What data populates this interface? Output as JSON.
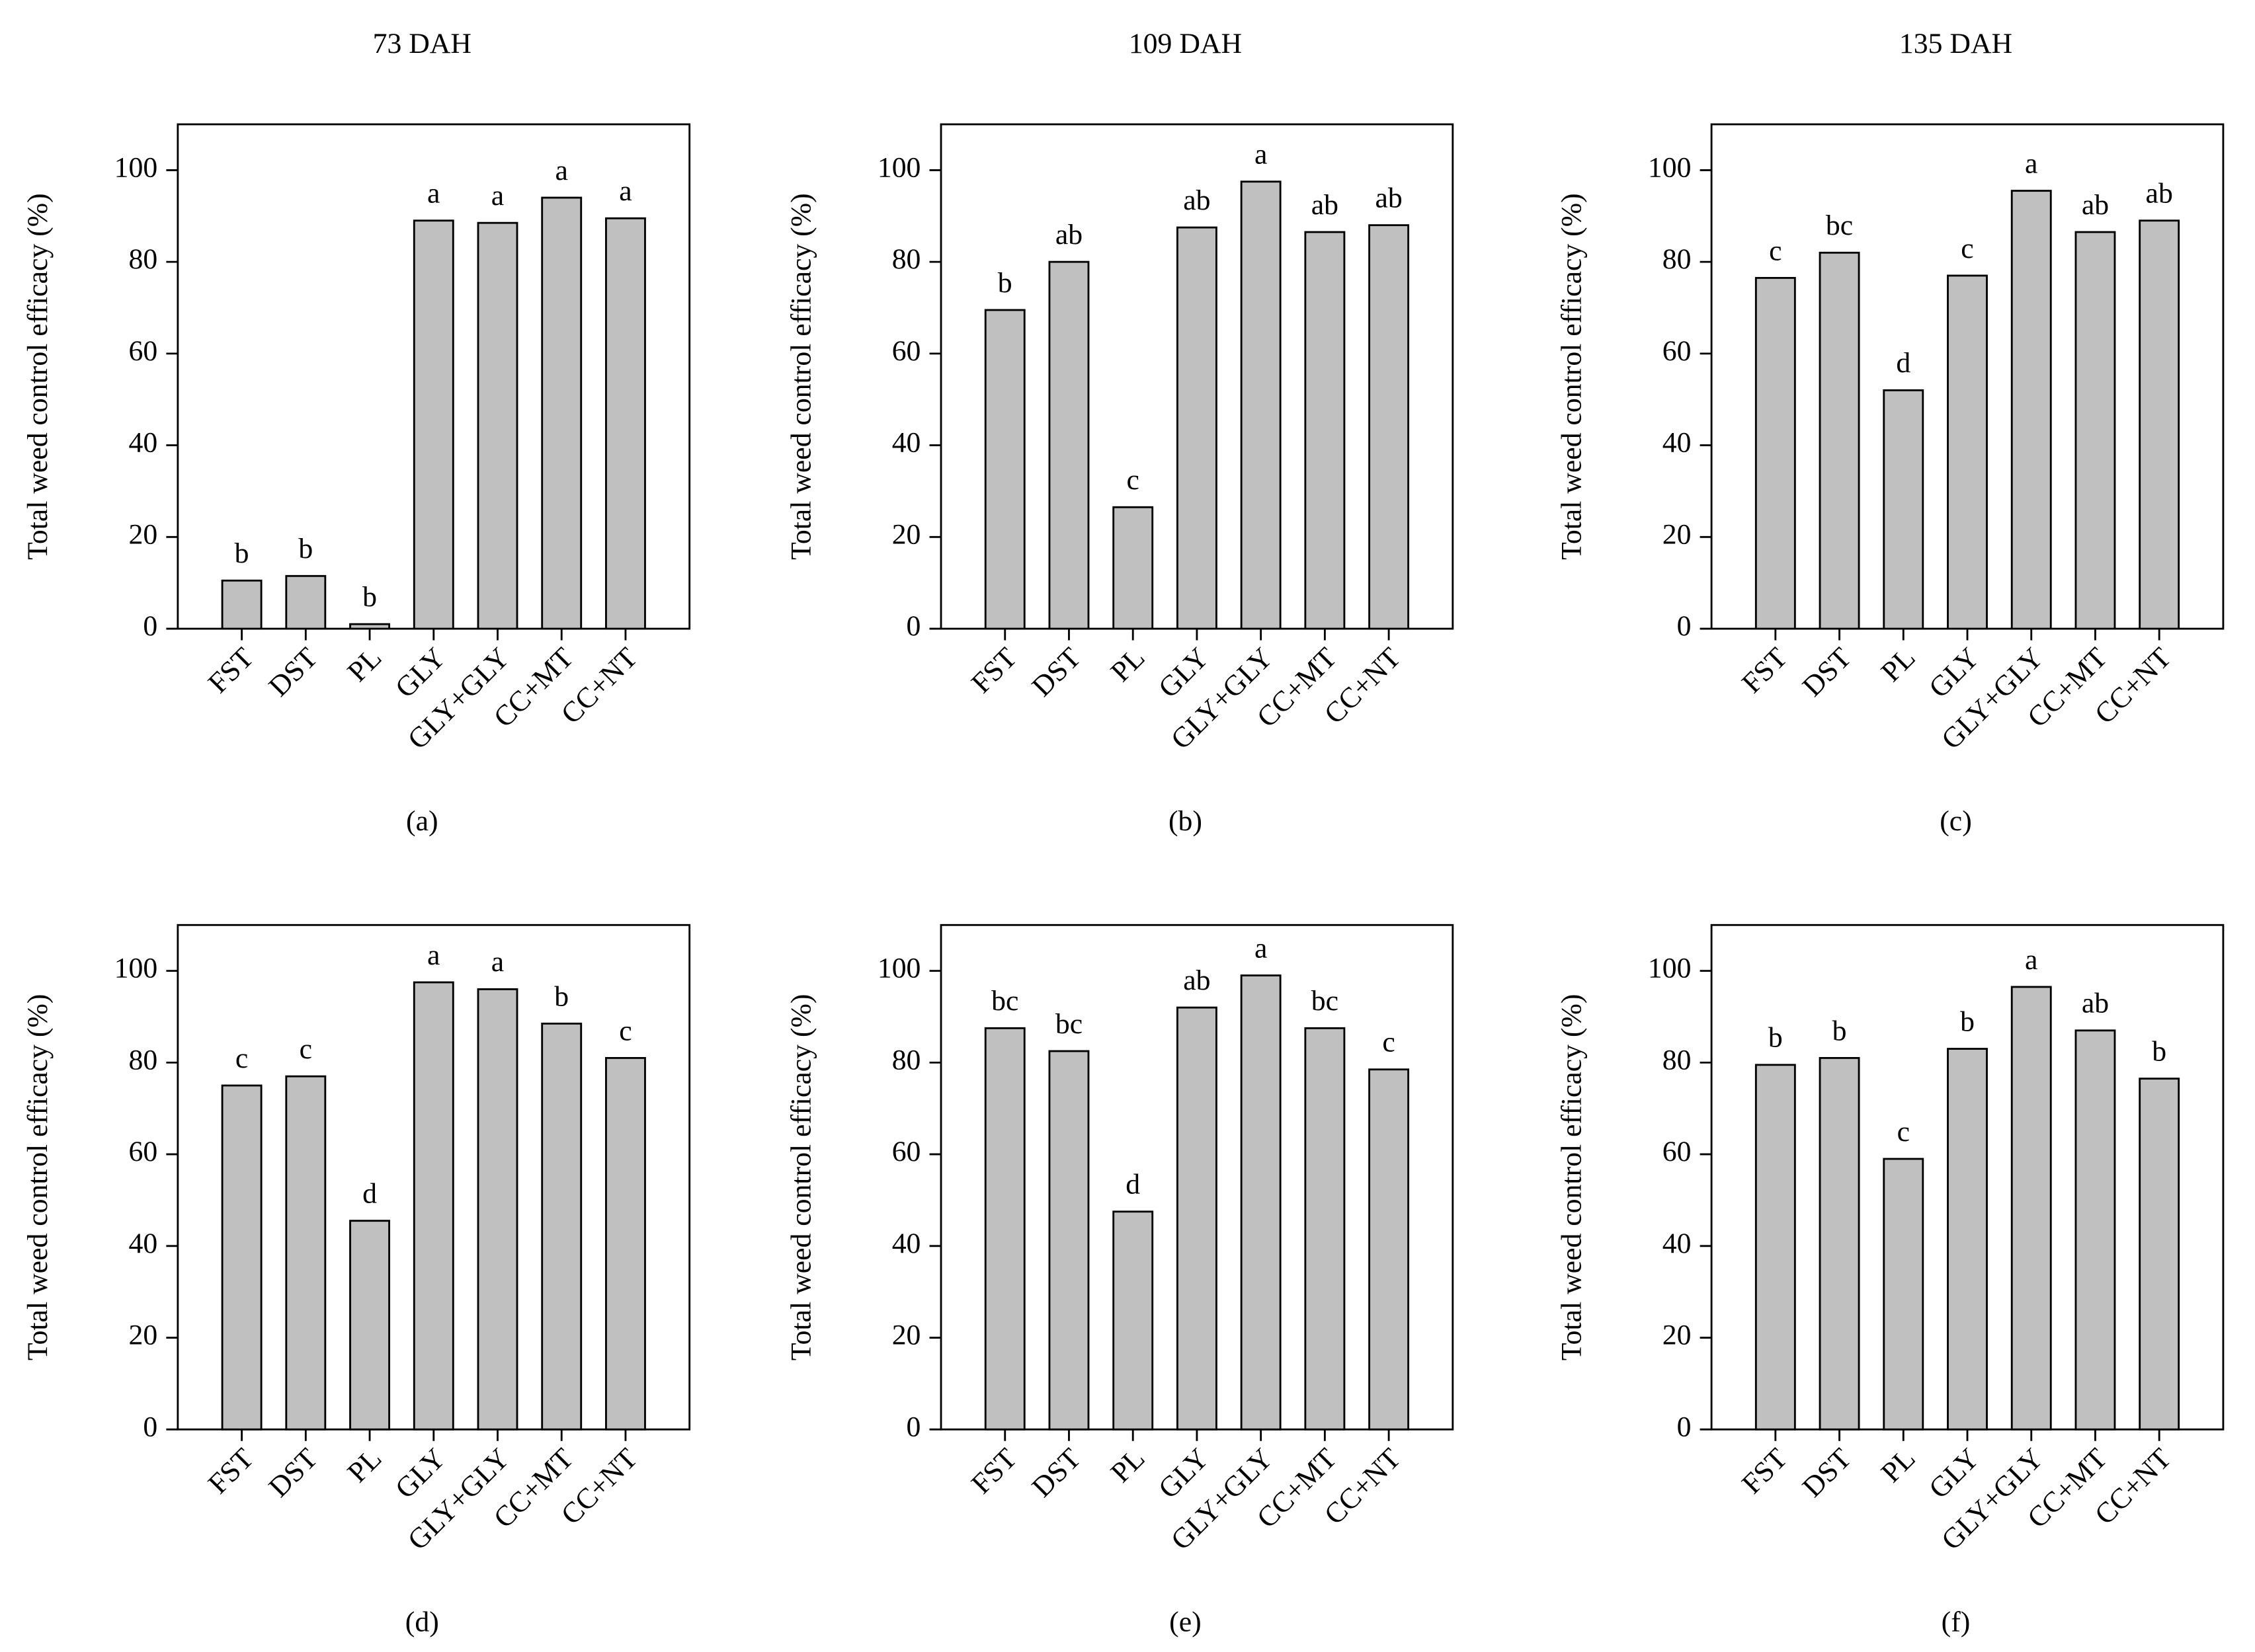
{
  "chart_data": [
    {
      "type": "bar",
      "title": "73 DAH",
      "label": "(a)",
      "ylabel": "Total weed control efficacy (%)",
      "categories": [
        "FST",
        "DST",
        "PL",
        "GLY",
        "GLY+GLY",
        "CC+MT",
        "CC+NT"
      ],
      "values": [
        10.5,
        11.5,
        1,
        89,
        88.5,
        94,
        89.5
      ],
      "bar_labels": [
        "b",
        "b",
        "b",
        "a",
        "a",
        "a",
        "a"
      ],
      "color": "#c0c0c0",
      "ylim": [
        0,
        110
      ],
      "yticks": [
        0,
        20,
        40,
        60,
        80,
        100
      ]
    },
    {
      "type": "bar",
      "title": "109 DAH",
      "label": "(b)",
      "ylabel": "Total weed control efficacy (%)",
      "categories": [
        "FST",
        "DST",
        "PL",
        "GLY",
        "GLY+GLY",
        "CC+MT",
        "CC+NT"
      ],
      "values": [
        69.5,
        80,
        26.5,
        87.5,
        97.5,
        86.5,
        88
      ],
      "bar_labels": [
        "b",
        "ab",
        "c",
        "ab",
        "a",
        "ab",
        "ab"
      ],
      "color": "#c0c0c0",
      "ylim": [
        0,
        110
      ],
      "yticks": [
        0,
        20,
        40,
        60,
        80,
        100
      ]
    },
    {
      "type": "bar",
      "title": "135 DAH",
      "label": "(c)",
      "ylabel": "Total weed control efficacy (%)",
      "categories": [
        "FST",
        "DST",
        "PL",
        "GLY",
        "GLY+GLY",
        "CC+MT",
        "CC+NT"
      ],
      "values": [
        76.5,
        82,
        52,
        77,
        95.5,
        86.5,
        89
      ],
      "bar_labels": [
        "c",
        "bc",
        "d",
        "c",
        "a",
        "ab",
        "ab"
      ],
      "color": "#c0c0c0",
      "ylim": [
        0,
        110
      ],
      "yticks": [
        0,
        20,
        40,
        60,
        80,
        100
      ]
    },
    {
      "type": "bar",
      "label": "(d)",
      "ylabel": "Total weed control efficacy (%)",
      "categories": [
        "FST",
        "DST",
        "PL",
        "GLY",
        "GLY+GLY",
        "CC+MT",
        "CC+NT"
      ],
      "values": [
        75,
        77,
        45.5,
        97.5,
        96,
        88.5,
        81
      ],
      "bar_labels": [
        "c",
        "c",
        "d",
        "a",
        "a",
        "b",
        "c"
      ],
      "color": "#c0c0c0",
      "ylim": [
        0,
        110
      ],
      "yticks": [
        0,
        20,
        40,
        60,
        80,
        100
      ]
    },
    {
      "type": "bar",
      "label": "(e)",
      "ylabel": "Total weed control efficacy (%)",
      "categories": [
        "FST",
        "DST",
        "PL",
        "GLY",
        "GLY+GLY",
        "CC+MT",
        "CC+NT"
      ],
      "values": [
        87.5,
        82.5,
        47.5,
        92,
        99,
        87.5,
        78.5
      ],
      "bar_labels": [
        "bc",
        "bc",
        "d",
        "ab",
        "a",
        "bc",
        "c"
      ],
      "color": "#c0c0c0",
      "ylim": [
        0,
        110
      ],
      "yticks": [
        0,
        20,
        40,
        60,
        80,
        100
      ]
    },
    {
      "type": "bar",
      "label": "(f)",
      "ylabel": "Total weed control efficacy (%)",
      "categories": [
        "FST",
        "DST",
        "PL",
        "GLY",
        "GLY+GLY",
        "CC+MT",
        "CC+NT"
      ],
      "values": [
        79.5,
        81,
        59,
        83,
        96.5,
        87,
        76.5
      ],
      "bar_labels": [
        "b",
        "b",
        "c",
        "b",
        "a",
        "ab",
        "b"
      ],
      "color": "#c0c0c0",
      "ylim": [
        0,
        110
      ],
      "yticks": [
        0,
        20,
        40,
        60,
        80,
        100
      ]
    }
  ]
}
